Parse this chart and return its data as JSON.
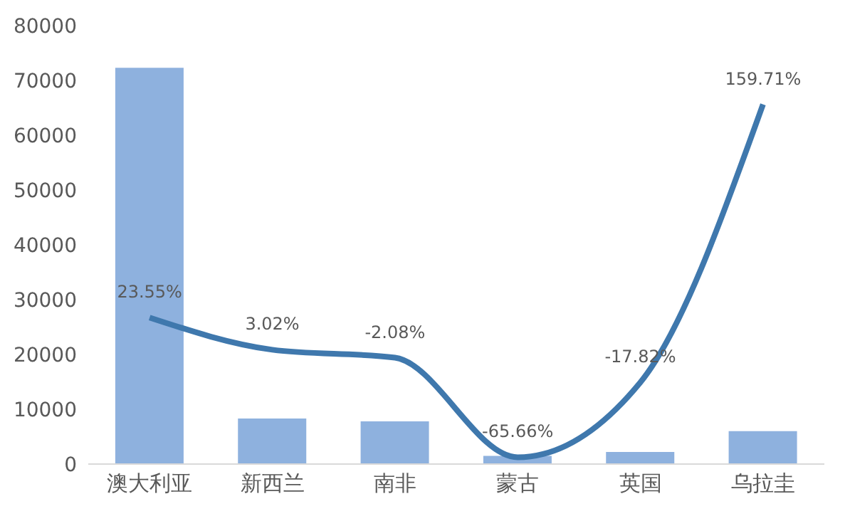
{
  "chart_data": {
    "type": "bar",
    "categories": [
      "澳大利亚",
      "新西兰",
      "南非",
      "蒙古",
      "英国",
      "乌拉圭"
    ],
    "series": [
      {
        "color": "#8eb1de",
        "values": [
          72300,
          8300,
          7800,
          1500,
          2200,
          6000
        ]
      },
      {
        "type": "line",
        "axis": "y2",
        "color": "#3f78ad",
        "values": [
          23.55,
          3.02,
          -2.08,
          -65.66,
          -17.82,
          159.71
        ],
        "value_labels": [
          "23.55%",
          "3.02%",
          "-2.08%",
          "-65.66%",
          "-17.82%",
          "159.71%"
        ]
      }
    ],
    "ylim": [
      0,
      80000
    ],
    "yticks": [
      0,
      10000,
      20000,
      30000,
      40000,
      50000,
      60000,
      70000,
      80000
    ],
    "grid": false,
    "legend": false,
    "marker": "none",
    "line_style": "solid"
  }
}
